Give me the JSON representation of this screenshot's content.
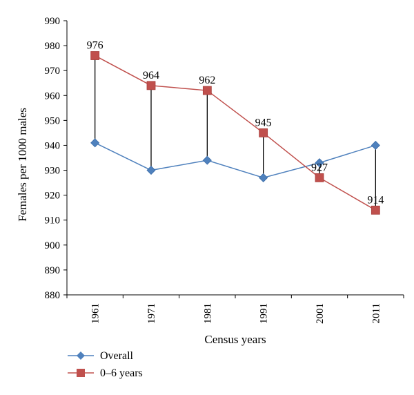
{
  "chart_data": {
    "type": "line",
    "title": "",
    "xlabel": "Census years",
    "ylabel": "Females per 1000 males",
    "categories": [
      "1961",
      "1971",
      "1981",
      "1991",
      "2001",
      "2011"
    ],
    "ylim": [
      880,
      990
    ],
    "yticks": [
      880,
      890,
      900,
      910,
      920,
      930,
      940,
      950,
      960,
      970,
      980,
      990
    ],
    "grid": false,
    "legend_position": "bottom-left",
    "series": [
      {
        "name": "Overall",
        "values": [
          941,
          930,
          934,
          927,
          933,
          940
        ],
        "color": "#4F81BD",
        "marker": "diamond",
        "line_color": "#4F81BD"
      },
      {
        "name": "0–6 years",
        "values": [
          976,
          964,
          962,
          945,
          927,
          914
        ],
        "color": "#C0504D",
        "marker": "square",
        "line_color": "#C0504D"
      }
    ],
    "data_labels": {
      "series": "0–6 years",
      "values": [
        "976",
        "964",
        "962",
        "945",
        "927",
        "914"
      ]
    },
    "drop_lines": true
  }
}
